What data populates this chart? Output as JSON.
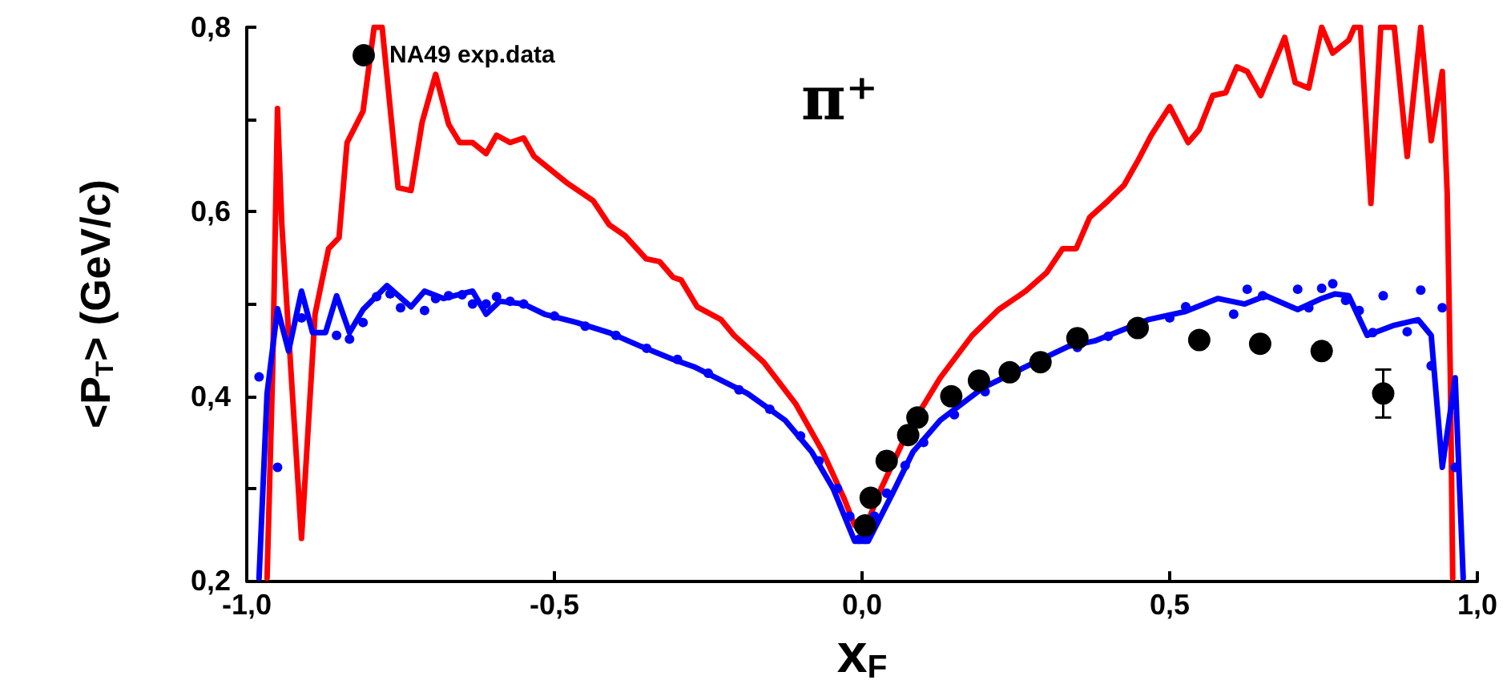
{
  "chart_data": {
    "type": "line",
    "xlabel": "x$_{F}$",
    "ylabel": "<P$_{T}$> (GeV/c)",
    "annotations": [
      "π⁺"
    ],
    "xlim": [
      -1,
      1
    ],
    "xticks": [
      {
        "value": -1,
        "label": "-1,0"
      },
      {
        "value": -0.5,
        "label": "-0,5"
      },
      {
        "value": 0,
        "label": "0,0"
      },
      {
        "value": 0.5,
        "label": "0,5"
      },
      {
        "value": 1,
        "label": "1,0"
      }
    ],
    "ylim": [
      0.2,
      0.8
    ],
    "yticks": [
      {
        "value": 0.2,
        "label": "0,2"
      },
      {
        "value": 0.3,
        "label": null
      },
      {
        "value": 0.4,
        "label": "0,4"
      },
      {
        "value": 0.5,
        "label": null
      },
      {
        "value": 0.6,
        "label": "0,6"
      },
      {
        "value": 0.7,
        "label": null
      },
      {
        "value": 0.8,
        "label": "0,8"
      }
    ],
    "grid": false,
    "legend": "top left",
    "series": [
      {
        "color": "#ff0000",
        "marker": "none",
        "line_style": "solid",
        "x": [
          -0.967,
          -0.958,
          -0.95,
          -0.943,
          -0.928,
          -0.911,
          -0.889,
          -0.867,
          -0.85,
          -0.837,
          -0.811,
          -0.793,
          -0.78,
          -0.754,
          -0.733,
          -0.715,
          -0.693,
          -0.672,
          -0.654,
          -0.633,
          -0.611,
          -0.594,
          -0.572,
          -0.55,
          -0.533,
          -0.481,
          -0.437,
          -0.411,
          -0.385,
          -0.351,
          -0.329,
          -0.307,
          -0.294,
          -0.268,
          -0.229,
          -0.208,
          -0.16,
          -0.108,
          -0.064,
          -0.029,
          -0.012,
          0.005,
          0.031,
          0.075,
          0.127,
          0.179,
          0.222,
          0.266,
          0.3,
          0.326,
          0.348,
          0.37,
          0.4,
          0.426,
          0.448,
          0.47,
          0.5,
          0.53,
          0.548,
          0.57,
          0.591,
          0.609,
          0.626,
          0.648,
          0.687,
          0.704,
          0.726,
          0.747,
          0.765,
          0.791,
          0.8,
          0.81,
          0.827,
          0.843,
          0.865,
          0.886,
          0.908,
          0.925,
          0.943,
          0.951,
          0.956,
          0.96
        ],
        "values": [
          0.203,
          0.426,
          0.712,
          0.586,
          0.426,
          0.246,
          0.489,
          0.56,
          0.572,
          0.675,
          0.709,
          0.8,
          0.8,
          0.626,
          0.623,
          0.697,
          0.749,
          0.695,
          0.675,
          0.675,
          0.663,
          0.683,
          0.675,
          0.68,
          0.66,
          0.632,
          0.612,
          0.586,
          0.574,
          0.549,
          0.546,
          0.529,
          0.526,
          0.497,
          0.483,
          0.466,
          0.437,
          0.392,
          0.34,
          0.289,
          0.26,
          0.257,
          0.3,
          0.363,
          0.42,
          0.466,
          0.494,
          0.514,
          0.534,
          0.56,
          0.56,
          0.594,
          0.612,
          0.629,
          0.655,
          0.683,
          0.714,
          0.675,
          0.689,
          0.726,
          0.729,
          0.757,
          0.752,
          0.726,
          0.789,
          0.74,
          0.734,
          0.8,
          0.772,
          0.786,
          0.8,
          0.8,
          0.609,
          0.8,
          0.8,
          0.66,
          0.8,
          0.677,
          0.752,
          0.62,
          0.426,
          0.203
        ]
      },
      {
        "color": "#0000ff",
        "marker": "none",
        "line_style": "solid",
        "x": [
          -0.98,
          -0.967,
          -0.95,
          -0.932,
          -0.911,
          -0.893,
          -0.872,
          -0.854,
          -0.833,
          -0.811,
          -0.772,
          -0.733,
          -0.711,
          -0.68,
          -0.633,
          -0.611,
          -0.589,
          -0.55,
          -0.516,
          -0.464,
          -0.411,
          -0.359,
          -0.307,
          -0.273,
          -0.186,
          -0.125,
          -0.082,
          -0.047,
          -0.012,
          0.01,
          0.049,
          0.083,
          0.127,
          0.196,
          0.266,
          0.335,
          0.378,
          0.465,
          0.526,
          0.578,
          0.622,
          0.656,
          0.708,
          0.747,
          0.769,
          0.791,
          0.821,
          0.865,
          0.904,
          0.925,
          0.943,
          0.964,
          0.977
        ],
        "values": [
          0.203,
          0.403,
          0.495,
          0.449,
          0.514,
          0.469,
          0.469,
          0.509,
          0.469,
          0.494,
          0.52,
          0.497,
          0.514,
          0.506,
          0.514,
          0.489,
          0.503,
          0.5,
          0.489,
          0.48,
          0.469,
          0.454,
          0.44,
          0.432,
          0.403,
          0.374,
          0.34,
          0.3,
          0.243,
          0.243,
          0.294,
          0.34,
          0.374,
          0.409,
          0.432,
          0.454,
          0.46,
          0.483,
          0.492,
          0.506,
          0.5,
          0.509,
          0.494,
          0.506,
          0.511,
          0.509,
          0.466,
          0.477,
          0.483,
          0.466,
          0.323,
          0.42,
          0.203
        ]
      },
      {
        "type": "scatter",
        "color": "#0000ff",
        "marker": "circle",
        "x": [
          -0.98,
          -0.95,
          -0.911,
          -0.854,
          -0.833,
          -0.811,
          -0.789,
          -0.767,
          -0.75,
          -0.711,
          -0.693,
          -0.672,
          -0.65,
          -0.633,
          -0.611,
          -0.594,
          -0.572,
          -0.55,
          -0.5,
          -0.45,
          -0.4,
          -0.35,
          -0.3,
          -0.25,
          -0.2,
          -0.15,
          -0.1,
          -0.07,
          -0.04,
          -0.02,
          -0.005,
          0.005,
          0.02,
          0.04,
          0.07,
          0.1,
          0.15,
          0.2,
          0.35,
          0.4,
          0.5,
          0.526,
          0.604,
          0.626,
          0.651,
          0.708,
          0.726,
          0.747,
          0.765,
          0.786,
          0.808,
          0.83,
          0.847,
          0.886,
          0.908,
          0.925,
          0.943,
          0.964
        ],
        "values": [
          0.421,
          0.323,
          0.485,
          0.466,
          0.462,
          0.48,
          0.508,
          0.511,
          0.496,
          0.493,
          0.506,
          0.509,
          0.51,
          0.5,
          0.5,
          0.508,
          0.503,
          0.5,
          0.487,
          0.476,
          0.466,
          0.452,
          0.44,
          0.425,
          0.407,
          0.386,
          0.357,
          0.33,
          0.3,
          0.27,
          0.245,
          0.245,
          0.27,
          0.295,
          0.325,
          0.35,
          0.38,
          0.405,
          0.453,
          0.465,
          0.485,
          0.497,
          0.489,
          0.516,
          0.509,
          0.516,
          0.496,
          0.517,
          0.522,
          0.504,
          0.493,
          0.469,
          0.509,
          0.47,
          0.515,
          0.433,
          0.496,
          0.323
        ]
      },
      {
        "type": "scatter",
        "name": "NA49 exp.data",
        "color": "#000000",
        "marker": "circle",
        "x": [
          0.005,
          0.014,
          0.04,
          0.075,
          0.09,
          0.145,
          0.19,
          0.24,
          0.29,
          0.35,
          0.448,
          0.548,
          0.647,
          0.747,
          0.847
        ],
        "values": [
          0.26,
          0.29,
          0.33,
          0.358,
          0.377,
          0.4,
          0.417,
          0.426,
          0.437,
          0.463,
          0.474,
          0.461,
          0.457,
          0.449,
          0.403
        ],
        "errors": [
          null,
          null,
          null,
          null,
          null,
          null,
          null,
          null,
          null,
          null,
          null,
          null,
          null,
          null,
          [
            0.377,
            0.429
          ]
        ]
      }
    ]
  }
}
